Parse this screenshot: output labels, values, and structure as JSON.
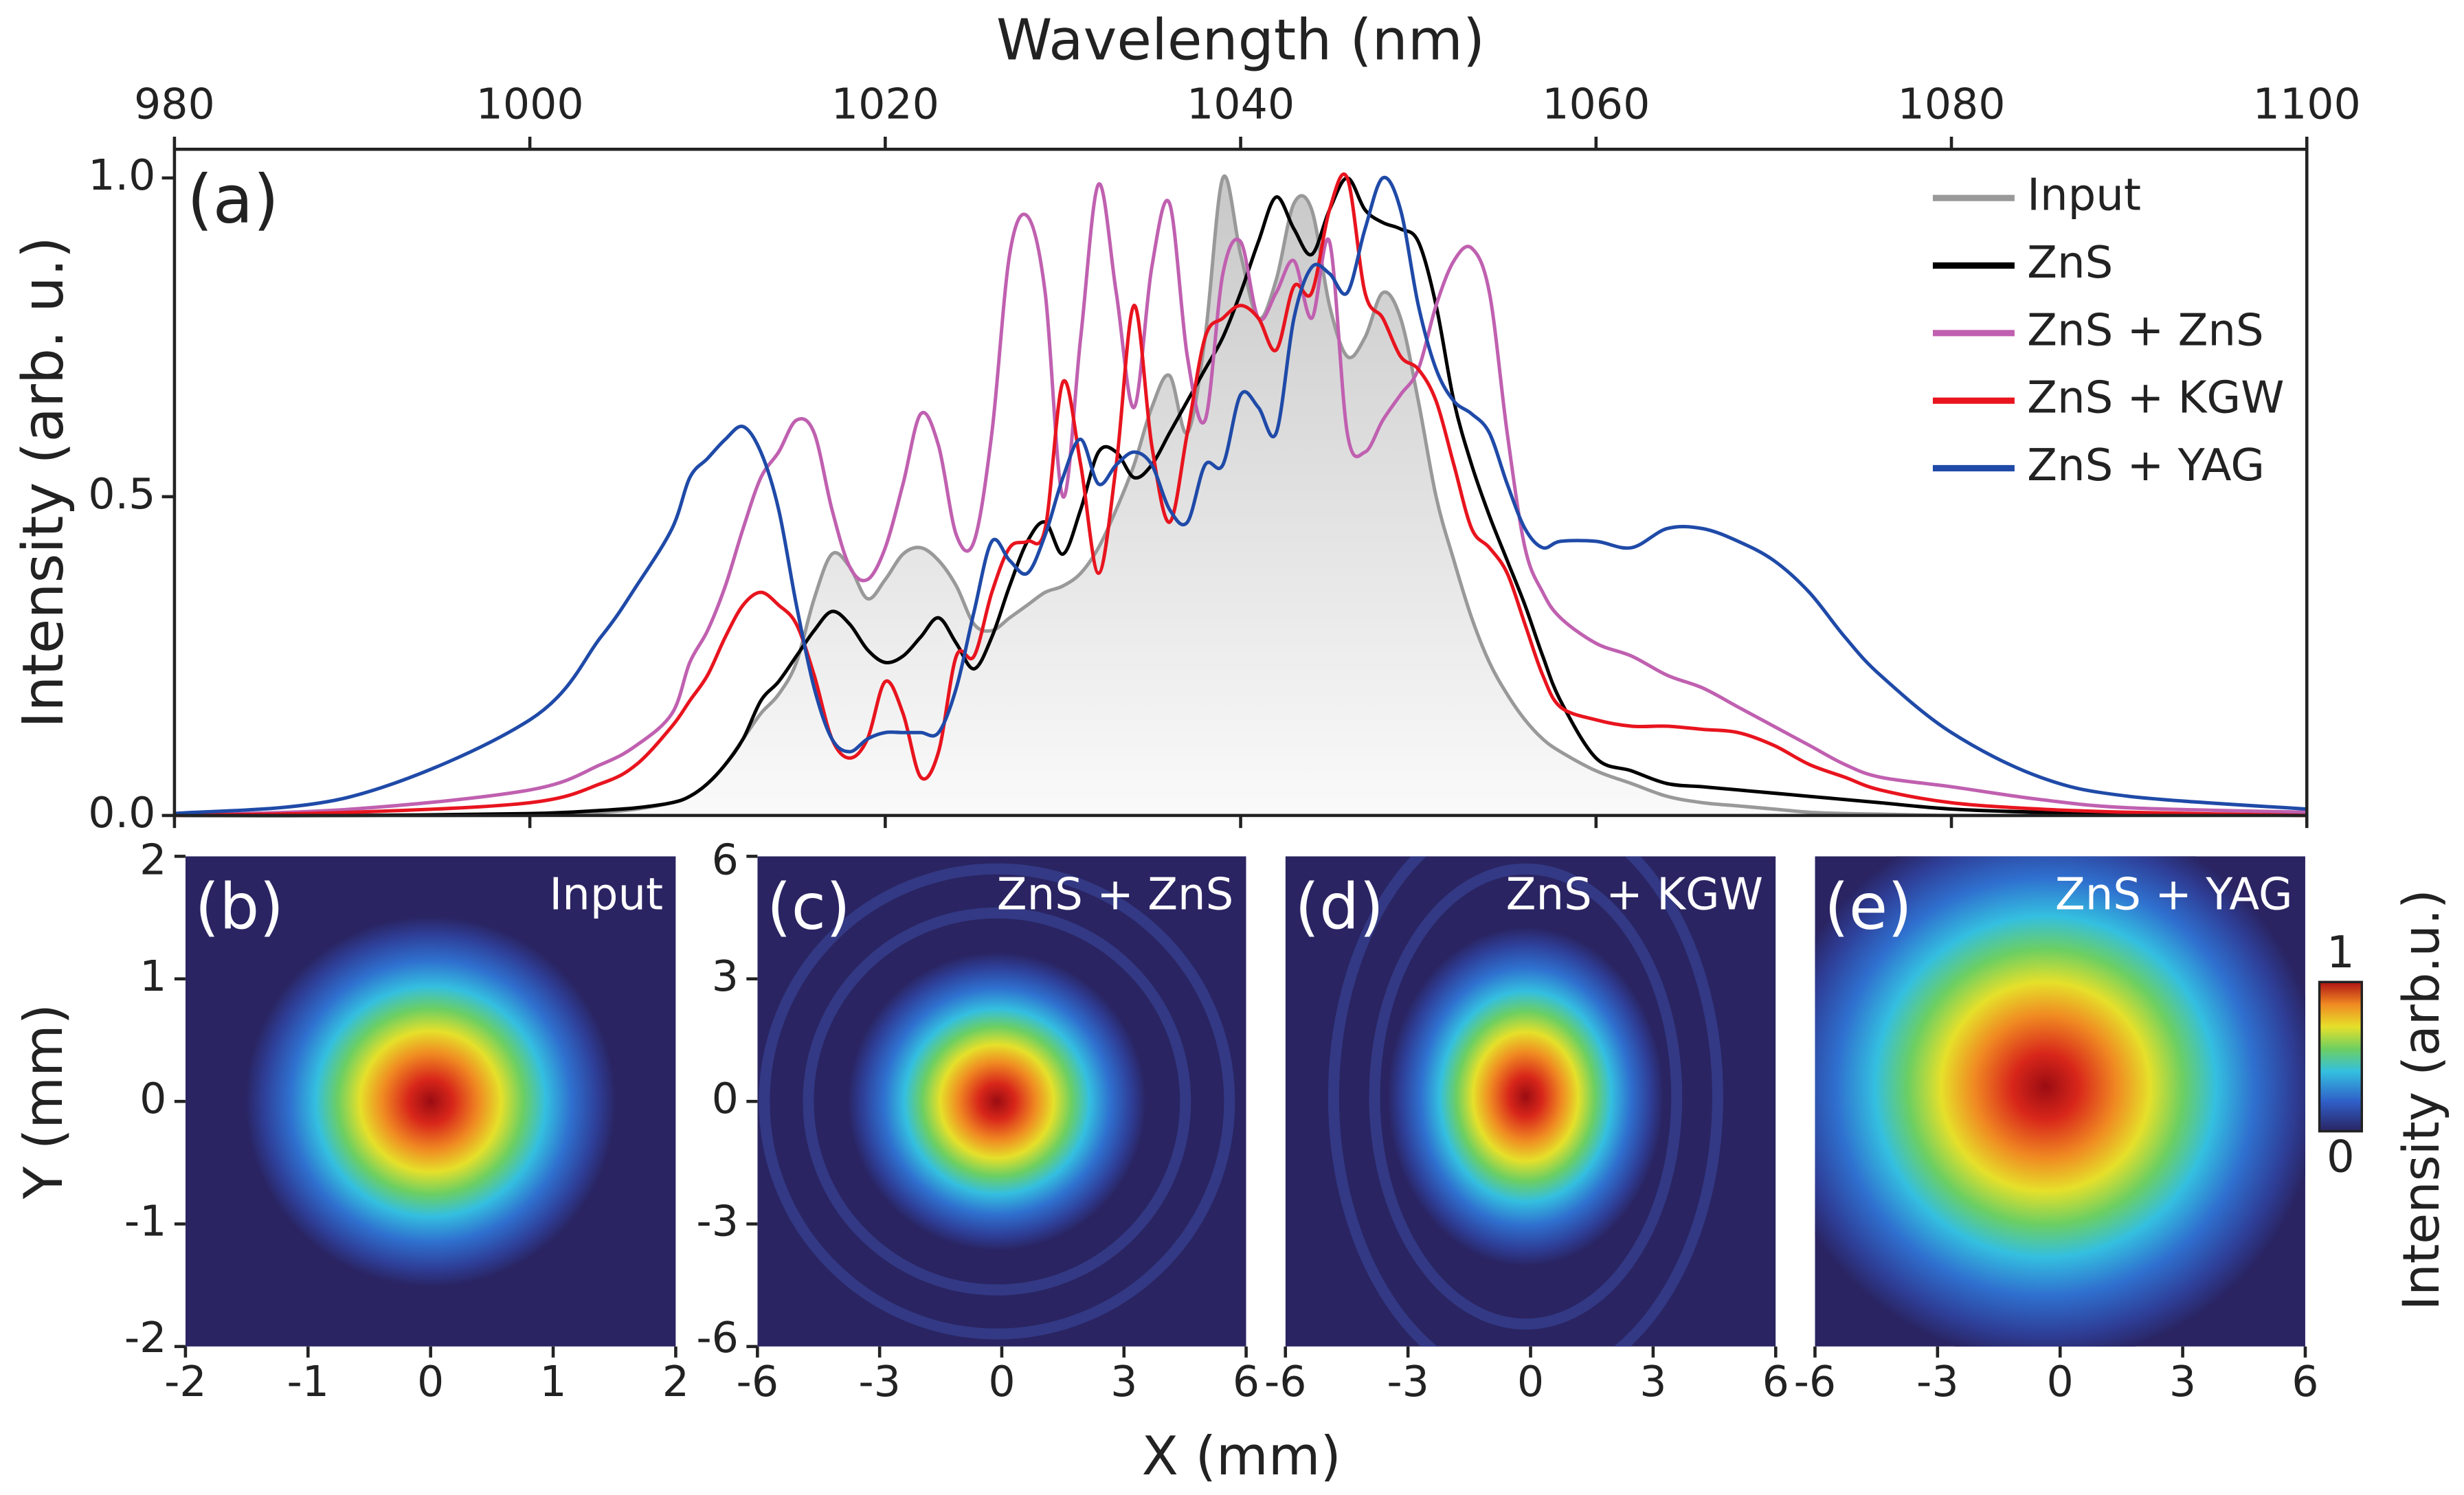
{
  "chart_data": [
    {
      "type": "line",
      "annotation": "(a)",
      "xlabel": "Wavelength (nm)",
      "ylabel": "Intensity (arb. u.)",
      "xlim": [
        980,
        1100
      ],
      "xticks": [
        980,
        1000,
        1020,
        1040,
        1060,
        1080,
        1100
      ],
      "ylim": [
        0,
        1.045
      ],
      "yticks": [
        {
          "value": 0,
          "label": "0.0"
        },
        {
          "value": 0.5,
          "label": "0.5"
        },
        {
          "value": 1,
          "label": "1.0"
        }
      ],
      "legend": "upper right",
      "x": [
        980,
        990,
        1000,
        1004,
        1006,
        1008,
        1009,
        1010,
        1011,
        1012,
        1013,
        1014,
        1015,
        1016,
        1017,
        1018,
        1019,
        1020,
        1021,
        1022,
        1023,
        1024,
        1025,
        1026,
        1027,
        1028,
        1029,
        1030,
        1031,
        1032,
        1033,
        1034,
        1035,
        1036,
        1037,
        1038,
        1039,
        1040,
        1041,
        1042,
        1043,
        1044,
        1045,
        1046,
        1047,
        1048,
        1049,
        1050,
        1051,
        1052,
        1053,
        1054,
        1055,
        1056,
        1057,
        1058,
        1060,
        1062,
        1064,
        1066,
        1068,
        1070,
        1072,
        1074,
        1076,
        1080,
        1085,
        1090,
        1100
      ],
      "series": [
        {
          "name": "Input",
          "color": "#999999",
          "fill": true,
          "values": [
            0,
            0,
            0,
            0.005,
            0.01,
            0.02,
            0.03,
            0.05,
            0.08,
            0.12,
            0.16,
            0.19,
            0.24,
            0.34,
            0.41,
            0.39,
            0.34,
            0.37,
            0.41,
            0.42,
            0.4,
            0.36,
            0.3,
            0.29,
            0.31,
            0.33,
            0.35,
            0.36,
            0.38,
            0.42,
            0.48,
            0.55,
            0.64,
            0.69,
            0.6,
            0.75,
            1.0,
            0.88,
            0.78,
            0.84,
            0.96,
            0.95,
            0.8,
            0.72,
            0.75,
            0.82,
            0.78,
            0.65,
            0.5,
            0.4,
            0.31,
            0.24,
            0.19,
            0.15,
            0.12,
            0.1,
            0.07,
            0.05,
            0.03,
            0.02,
            0.015,
            0.01,
            0.005,
            0.003,
            0.002,
            0,
            0,
            0,
            0
          ]
        },
        {
          "name": "ZnS",
          "color": "#000000",
          "values": [
            0,
            0,
            0.003,
            0.008,
            0.012,
            0.02,
            0.03,
            0.05,
            0.08,
            0.12,
            0.18,
            0.21,
            0.25,
            0.29,
            0.32,
            0.3,
            0.26,
            0.24,
            0.25,
            0.28,
            0.31,
            0.27,
            0.23,
            0.28,
            0.36,
            0.43,
            0.46,
            0.41,
            0.48,
            0.57,
            0.57,
            0.53,
            0.55,
            0.6,
            0.65,
            0.7,
            0.75,
            0.82,
            0.9,
            0.97,
            0.92,
            0.88,
            0.95,
            1.0,
            0.95,
            0.93,
            0.92,
            0.9,
            0.8,
            0.65,
            0.55,
            0.47,
            0.4,
            0.33,
            0.25,
            0.18,
            0.09,
            0.07,
            0.05,
            0.045,
            0.04,
            0.035,
            0.03,
            0.025,
            0.02,
            0.01,
            0.005,
            0.003,
            0
          ]
        },
        {
          "name": "ZnS + ZnS",
          "color": "#c060b0",
          "values": [
            0,
            0.01,
            0.04,
            0.08,
            0.11,
            0.16,
            0.24,
            0.29,
            0.36,
            0.45,
            0.53,
            0.57,
            0.62,
            0.6,
            0.48,
            0.39,
            0.37,
            0.42,
            0.52,
            0.63,
            0.58,
            0.44,
            0.43,
            0.6,
            0.88,
            0.94,
            0.82,
            0.5,
            0.75,
            0.99,
            0.82,
            0.64,
            0.86,
            0.96,
            0.72,
            0.62,
            0.85,
            0.9,
            0.78,
            0.82,
            0.87,
            0.78,
            0.9,
            0.6,
            0.57,
            0.62,
            0.66,
            0.7,
            0.8,
            0.87,
            0.89,
            0.82,
            0.6,
            0.42,
            0.35,
            0.31,
            0.27,
            0.25,
            0.22,
            0.2,
            0.17,
            0.14,
            0.11,
            0.08,
            0.06,
            0.045,
            0.025,
            0.012,
            0.005
          ]
        },
        {
          "name": "ZnS + KGW",
          "color": "#e8141e",
          "values": [
            0,
            0.005,
            0.02,
            0.05,
            0.08,
            0.14,
            0.18,
            0.22,
            0.28,
            0.33,
            0.35,
            0.33,
            0.3,
            0.22,
            0.12,
            0.09,
            0.12,
            0.21,
            0.16,
            0.06,
            0.1,
            0.25,
            0.25,
            0.35,
            0.42,
            0.43,
            0.45,
            0.68,
            0.55,
            0.38,
            0.55,
            0.8,
            0.58,
            0.46,
            0.6,
            0.75,
            0.78,
            0.8,
            0.78,
            0.73,
            0.83,
            0.82,
            0.95,
            1.0,
            0.82,
            0.78,
            0.72,
            0.7,
            0.65,
            0.55,
            0.45,
            0.42,
            0.38,
            0.3,
            0.22,
            0.17,
            0.15,
            0.14,
            0.14,
            0.135,
            0.13,
            0.11,
            0.08,
            0.06,
            0.04,
            0.02,
            0.01,
            0.005,
            0
          ]
        },
        {
          "name": "ZnS + YAG",
          "color": "#1f4aa8",
          "values": [
            0.003,
            0.03,
            0.15,
            0.28,
            0.36,
            0.45,
            0.53,
            0.56,
            0.59,
            0.61,
            0.57,
            0.48,
            0.33,
            0.2,
            0.12,
            0.1,
            0.12,
            0.13,
            0.13,
            0.13,
            0.13,
            0.2,
            0.32,
            0.43,
            0.4,
            0.38,
            0.44,
            0.53,
            0.59,
            0.52,
            0.55,
            0.57,
            0.55,
            0.48,
            0.46,
            0.55,
            0.55,
            0.66,
            0.64,
            0.6,
            0.78,
            0.86,
            0.85,
            0.82,
            0.92,
            1.0,
            0.95,
            0.8,
            0.7,
            0.65,
            0.63,
            0.6,
            0.52,
            0.45,
            0.42,
            0.43,
            0.43,
            0.42,
            0.45,
            0.45,
            0.43,
            0.4,
            0.35,
            0.28,
            0.22,
            0.13,
            0.06,
            0.03,
            0.01
          ]
        }
      ]
    },
    {
      "type": "heatmap",
      "label": "(b)",
      "title": "Input",
      "xlim": [
        -2,
        2
      ],
      "xticks": [
        -2,
        -1,
        0,
        1,
        2
      ],
      "ylim": [
        -2,
        2
      ],
      "yticks": [
        -2,
        -1,
        0,
        1,
        2
      ]
    },
    {
      "type": "heatmap",
      "label": "(c)",
      "title": "ZnS + ZnS",
      "xlim": [
        -6,
        6
      ],
      "xticks": [
        -6,
        -3,
        0,
        3,
        6
      ],
      "ylim": [
        -6,
        6
      ],
      "yticks": [
        -6,
        -3,
        0,
        3,
        6
      ]
    },
    {
      "type": "heatmap",
      "label": "(d)",
      "title": "ZnS + KGW",
      "xlim": [
        -6,
        6
      ],
      "xticks": [
        -6,
        -3,
        0,
        3,
        6
      ]
    },
    {
      "type": "heatmap",
      "label": "(e)",
      "title": "ZnS + YAG",
      "xlim": [
        -6,
        6
      ],
      "xticks": [
        -6,
        -3,
        0,
        3,
        6
      ]
    }
  ],
  "beam_axes": {
    "xlabel": "X (mm)",
    "ylabel": "Y (mm)"
  },
  "colorbar": {
    "label": "Intensity (arb.u.)",
    "ticks": [
      0,
      1
    ]
  }
}
